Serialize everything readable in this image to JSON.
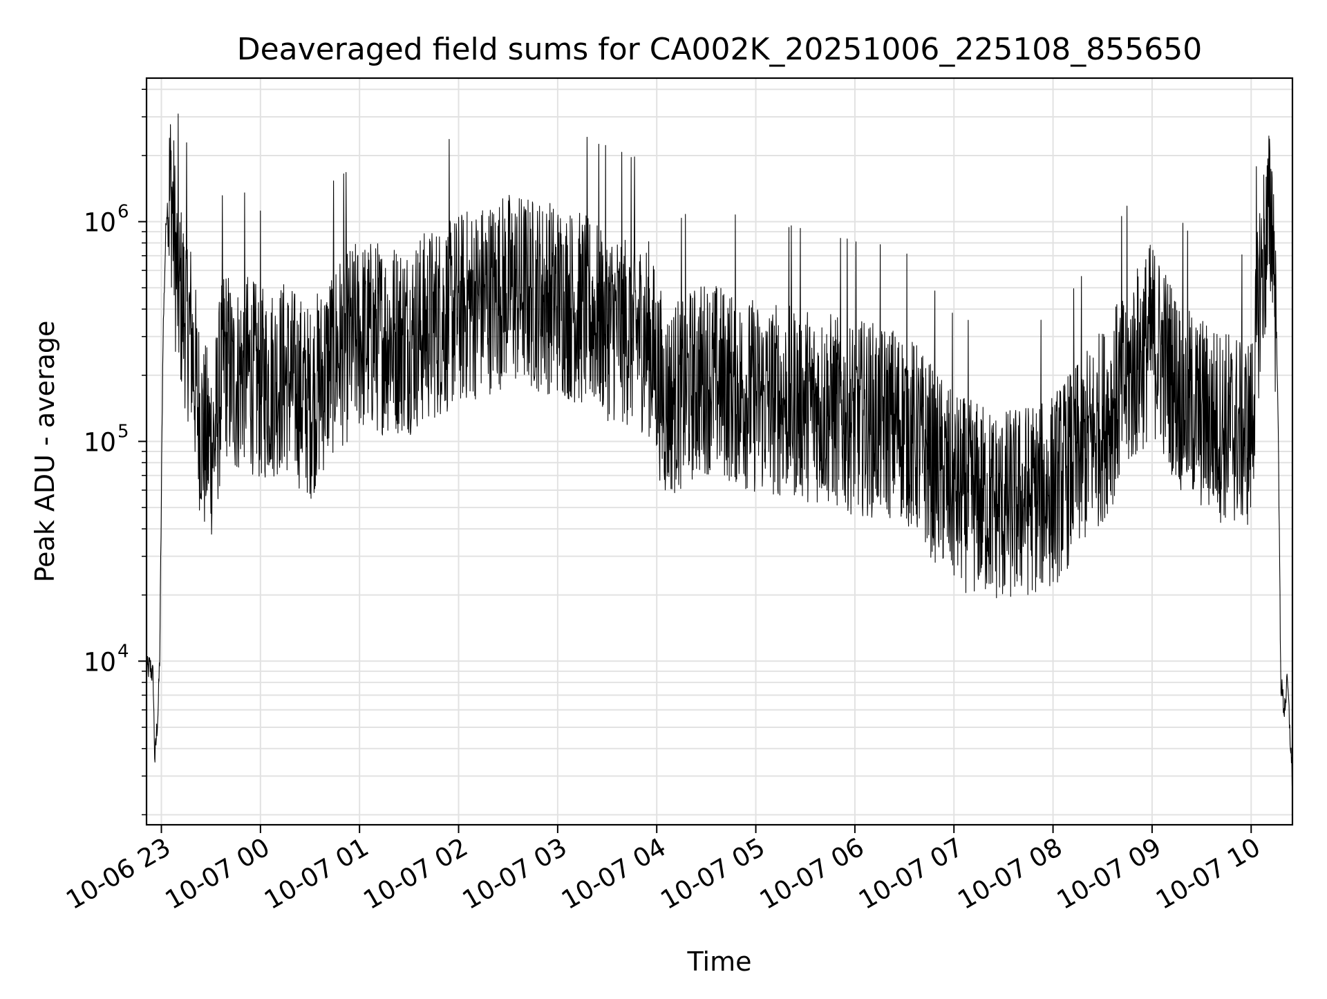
{
  "chart_data": {
    "type": "line",
    "title": "Deaveraged field sums for CA002K_20251006_225108_855650",
    "xlabel": "Time",
    "ylabel": "Peak ADU - average",
    "yscale": "log",
    "ylim": [
      1800,
      4500000
    ],
    "xlim": [
      "2025-10-06 22:51",
      "2025-10-07 10:25"
    ],
    "grid": true,
    "line_color": "#000000",
    "x_ticks": [
      {
        "value": "2025-10-06 23:00",
        "label": "10-06 23"
      },
      {
        "value": "2025-10-07 00:00",
        "label": "10-07 00"
      },
      {
        "value": "2025-10-07 01:00",
        "label": "10-07 01"
      },
      {
        "value": "2025-10-07 02:00",
        "label": "10-07 02"
      },
      {
        "value": "2025-10-07 03:00",
        "label": "10-07 03"
      },
      {
        "value": "2025-10-07 04:00",
        "label": "10-07 04"
      },
      {
        "value": "2025-10-07 05:00",
        "label": "10-07 05"
      },
      {
        "value": "2025-10-07 06:00",
        "label": "10-07 06"
      },
      {
        "value": "2025-10-07 07:00",
        "label": "10-07 07"
      },
      {
        "value": "2025-10-07 08:00",
        "label": "10-07 08"
      },
      {
        "value": "2025-10-07 09:00",
        "label": "10-07 09"
      },
      {
        "value": "2025-10-07 10:00",
        "label": "10-07 10"
      }
    ],
    "y_ticks": [
      {
        "value": 10000,
        "base": "10",
        "exponent": "4"
      },
      {
        "value": 100000,
        "base": "10",
        "exponent": "5"
      },
      {
        "value": 1000000,
        "base": "10",
        "exponent": "6"
      }
    ],
    "series": [
      {
        "x": [
          "2025-10-06 22:51",
          "2025-10-06 22:53",
          "2025-10-06 22:55",
          "2025-10-06 22:56",
          "2025-10-06 22:58",
          "2025-10-06 22:59",
          "2025-10-06 23:01",
          "2025-10-06 23:03",
          "2025-10-06 23:06",
          "2025-10-06 23:08",
          "2025-10-06 23:10",
          "2025-10-06 23:14",
          "2025-10-06 23:18",
          "2025-10-06 23:22",
          "2025-10-06 23:26",
          "2025-10-06 23:32",
          "2025-10-06 23:38",
          "2025-10-06 23:44",
          "2025-10-06 23:50",
          "2025-10-07 00:00",
          "2025-10-07 00:15",
          "2025-10-07 00:30",
          "2025-10-07 00:45",
          "2025-10-07 01:00",
          "2025-10-07 01:30",
          "2025-10-07 02:00",
          "2025-10-07 02:30",
          "2025-10-07 03:00",
          "2025-10-07 03:30",
          "2025-10-07 03:55",
          "2025-10-07 04:05",
          "2025-10-07 04:30",
          "2025-10-07 05:00",
          "2025-10-07 05:30",
          "2025-10-07 06:00",
          "2025-10-07 06:30",
          "2025-10-07 07:00",
          "2025-10-07 07:30",
          "2025-10-07 08:00",
          "2025-10-07 08:30",
          "2025-10-07 09:00",
          "2025-10-07 09:20",
          "2025-10-07 09:40",
          "2025-10-07 10:00",
          "2025-10-07 10:05",
          "2025-10-07 10:10",
          "2025-10-07 10:13",
          "2025-10-07 10:16",
          "2025-10-07 10:18",
          "2025-10-07 10:20",
          "2025-10-07 10:22",
          "2025-10-07 10:25"
        ],
        "y": [
          9000,
          9500,
          8500,
          3500,
          6000,
          10500,
          300000,
          1100000,
          1400000,
          800000,
          500000,
          400000,
          300000,
          150000,
          100000,
          100000,
          250000,
          180000,
          220000,
          180000,
          200000,
          150000,
          250000,
          300000,
          300000,
          400000,
          500000,
          450000,
          350000,
          300000,
          150000,
          200000,
          160000,
          150000,
          130000,
          120000,
          60000,
          50000,
          60000,
          120000,
          300000,
          150000,
          120000,
          110000,
          500000,
          900000,
          1100000,
          200000,
          8000,
          6000,
          8000,
          2800
        ]
      }
    ]
  }
}
